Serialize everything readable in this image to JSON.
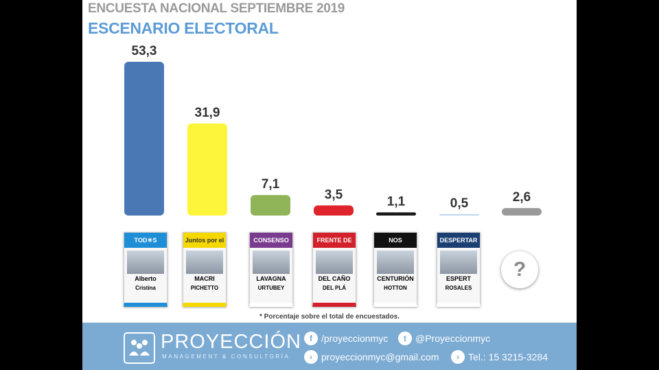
{
  "header": {
    "title": "ENCUESTA NACIONAL SEPTIEMBRE 2019",
    "subtitle": "ESCENARIO ELECTORAL"
  },
  "chart_data": {
    "type": "bar",
    "categories": [
      "Todos",
      "Juntos por el Cambio",
      "Consenso Federal",
      "Frente de Izquierda Unidad",
      "NOS",
      "Despertar",
      "?"
    ],
    "values": [
      53.3,
      31.9,
      7.1,
      3.5,
      1.1,
      0.5,
      2.6
    ],
    "value_labels": [
      "53,3",
      "31,9",
      "7,1",
      "3,5",
      "1,1",
      "0,5",
      "2,6"
    ],
    "colors": [
      "#4a78b5",
      "#fdf53a",
      "#8fb558",
      "#e0242b",
      "#1a1a1a",
      "#bfd9f0",
      "#999999"
    ],
    "ylim": [
      0,
      53.3
    ],
    "grid": false,
    "legend": "none"
  },
  "ballots": [
    {
      "top": "TOD☀S",
      "line1": "Alberto",
      "line2": "Cristina",
      "top_color": "#1e8fd6",
      "foot_color": "#1e8fd6"
    },
    {
      "top": "Juntos por el CAMBIO",
      "line1": "MACRI",
      "line2": "PICHETTO",
      "top_color": "#f5d800",
      "foot_color": "#f5d800"
    },
    {
      "top": "CONSENSO FEDERAL",
      "line1": "LAVAGNA",
      "line2": "URTUBEY",
      "top_color": "#7a3b8f",
      "foot_color": "#ffffff"
    },
    {
      "top": "FRENTE DE IZQUIERDA",
      "line1": "DEL CAÑO",
      "line2": "DEL PLÁ",
      "top_color": "#d4202a",
      "foot_color": "#d4202a"
    },
    {
      "top": "NOS",
      "line1": "CENTURIÓN",
      "line2": "HOTTON",
      "top_color": "#111111",
      "foot_color": "#ffffff"
    },
    {
      "top": "DESPERTAR",
      "line1": "ESPERT",
      "line2": "ROSALES",
      "top_color": "#1b3f73",
      "foot_color": "#ffffff"
    }
  ],
  "unknown_symbol": "?",
  "footnote": "* Porcentaje sobre el total de encuestados.",
  "footer": {
    "brand": "PROYECCIÓN",
    "brand_sub": "MANAGEMENT & CONSULTORÍA",
    "facebook": "/proyeccionmyc",
    "twitter": "@Proyeccionmyc",
    "email": "proyeccionmyc@gmail.com",
    "phone": "Tel.: 15 3215-3284",
    "facebook_icon": "f",
    "twitter_icon": "t",
    "arrow_icon": "›"
  }
}
